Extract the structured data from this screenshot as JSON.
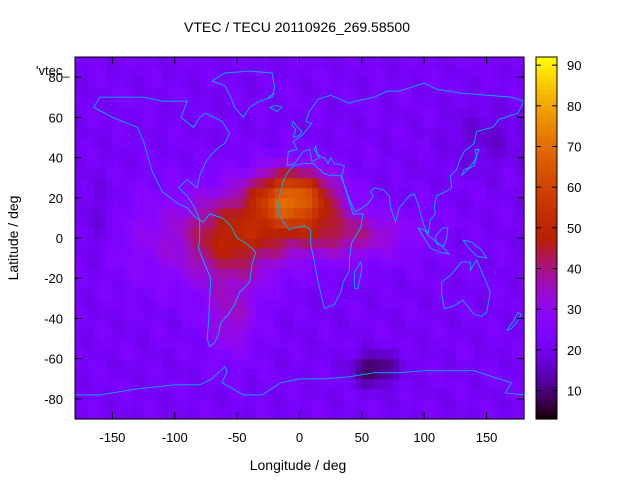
{
  "chart_data": {
    "type": "heatmap",
    "title": "VTEC / TECU 20110926_269.58500",
    "xlabel": "Longitude / deg",
    "ylabel": "Latitude / deg",
    "xlim": [
      -180,
      180
    ],
    "ylim": [
      -90,
      90
    ],
    "xticks": [
      "-150",
      "-100",
      "-50",
      "0",
      "50",
      "100",
      "150"
    ],
    "yticks": [
      "-80",
      "-60",
      "-40",
      "-20",
      "0",
      "20",
      "40",
      "60",
      "80"
    ],
    "key_label": "'vtec_",
    "colorbar": {
      "min": 3,
      "max": 92,
      "ticks": [
        "10",
        "20",
        "30",
        "40",
        "50",
        "60",
        "70",
        "80",
        "90"
      ],
      "palette": "black-blue-purple-red-orange-yellow"
    },
    "blobs": [
      {
        "lon": -5,
        "lat": 20,
        "slon": 32,
        "slat": 14,
        "amp": 45
      },
      {
        "lon": -55,
        "lat": 0,
        "slon": 40,
        "slat": 22,
        "amp": 26
      },
      {
        "lon": 30,
        "lat": 2,
        "slon": 55,
        "slat": 12,
        "amp": 18
      },
      {
        "lon": -55,
        "lat": -40,
        "slon": 20,
        "slat": 18,
        "amp": 12
      },
      {
        "lon": -120,
        "lat": 0,
        "slon": 35,
        "slat": 25,
        "amp": 6
      },
      {
        "lon": 60,
        "lat": -65,
        "slon": 18,
        "slat": 8,
        "amp": -15
      },
      {
        "lon": -160,
        "lat": 10,
        "slon": 15,
        "slat": 20,
        "amp": -4
      },
      {
        "lon": 150,
        "lat": 50,
        "slon": 30,
        "slat": 15,
        "amp": -5
      }
    ],
    "background_vtec": 22
  }
}
